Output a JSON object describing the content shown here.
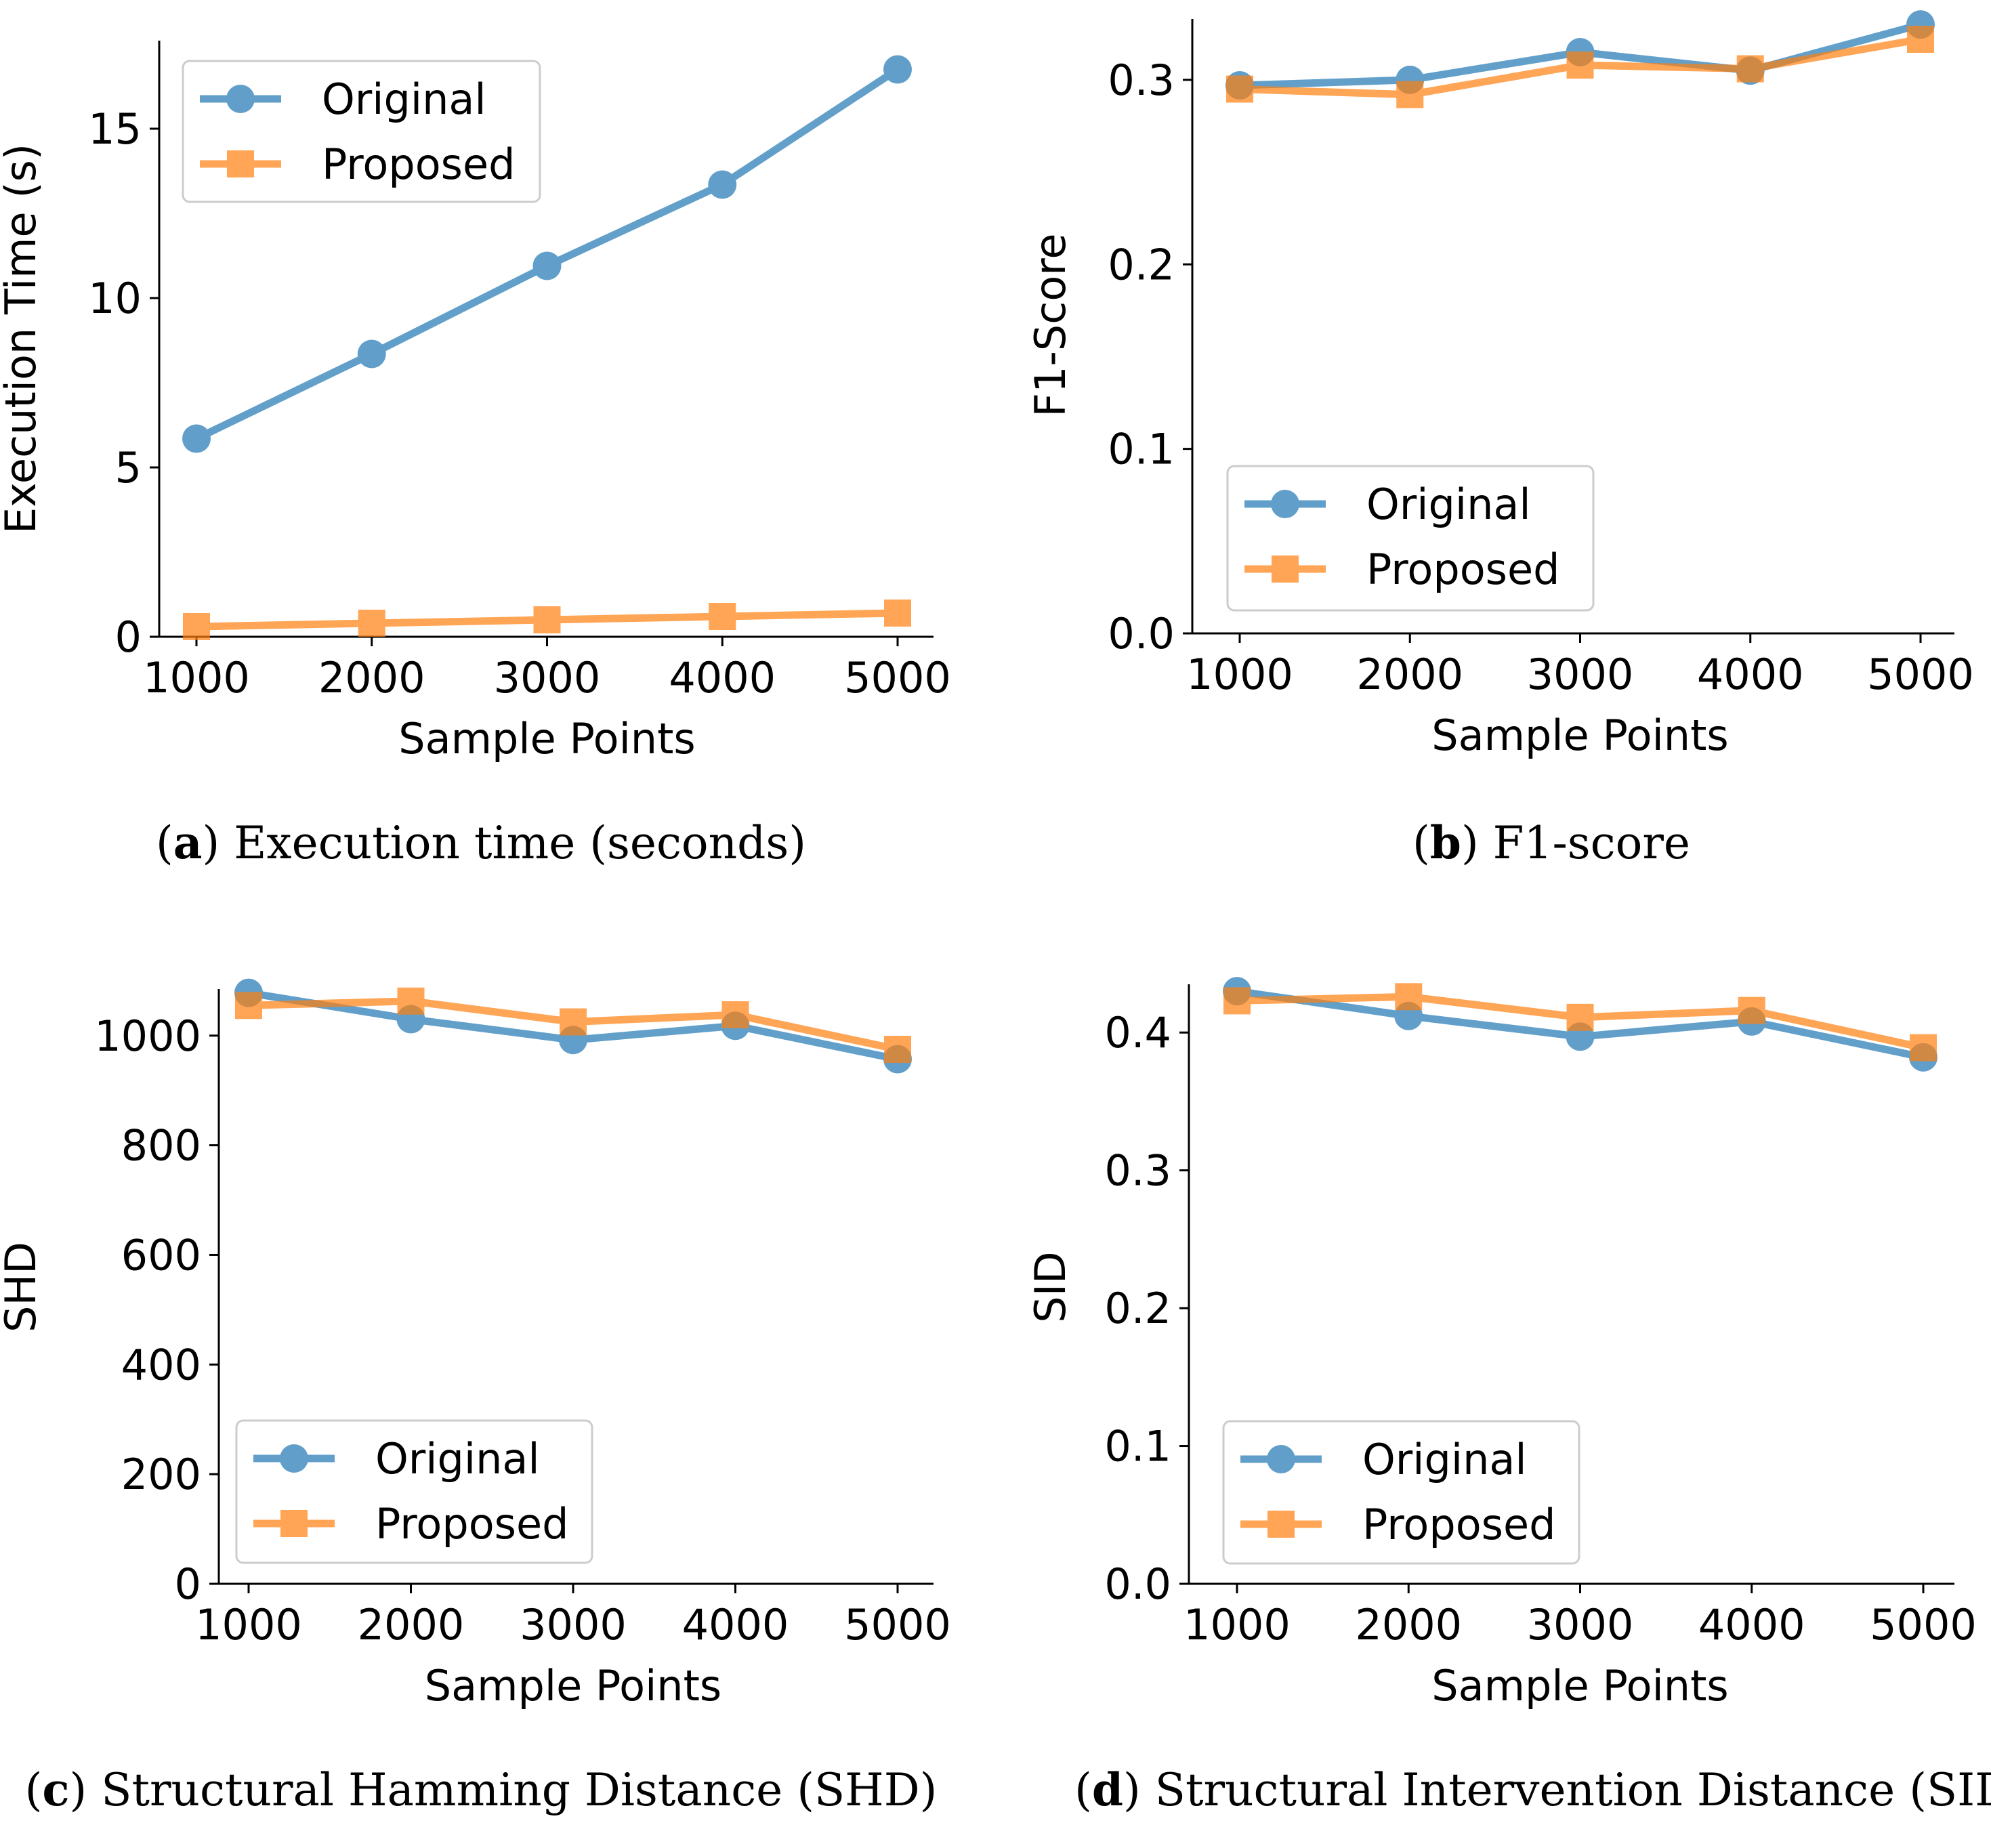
{
  "chart_data": [
    {
      "type": "line",
      "id": "a",
      "caption_letter": "a",
      "caption_text": " Execution time (seconds)",
      "xlabel": "Sample Points",
      "ylabel": "Execution Time (s)",
      "categories": [
        1000,
        2000,
        3000,
        4000,
        5000
      ],
      "x_ticks": [
        "1000",
        "2000",
        "3000",
        "4000",
        "5000"
      ],
      "ylim": [
        0,
        17.6
      ],
      "y_ticks": [
        0,
        5,
        10,
        15
      ],
      "y_tick_labels": [
        "0",
        "5",
        "10",
        "15"
      ],
      "legend_position": "upper-left",
      "series": [
        {
          "name": "Original",
          "marker": "circle",
          "color": "#1f77b4",
          "values": [
            5.85,
            8.35,
            10.95,
            13.35,
            16.75
          ]
        },
        {
          "name": "Proposed",
          "marker": "square",
          "color": "#ff7f0e",
          "values": [
            0.3,
            0.4,
            0.5,
            0.6,
            0.7
          ]
        }
      ]
    },
    {
      "type": "line",
      "id": "b",
      "caption_letter": "b",
      "caption_text": " F1-score",
      "xlabel": "Sample Points",
      "ylabel": "F1-Score",
      "categories": [
        1000,
        2000,
        3000,
        4000,
        5000
      ],
      "x_ticks": [
        "1000",
        "2000",
        "3000",
        "4000",
        "5000"
      ],
      "ylim": [
        0,
        0.333
      ],
      "y_ticks": [
        0.0,
        0.1,
        0.2,
        0.3
      ],
      "y_tick_labels": [
        "0.0",
        "0.1",
        "0.2",
        "0.3"
      ],
      "legend_position": "lower-left",
      "series": [
        {
          "name": "Original",
          "marker": "circle",
          "color": "#1f77b4",
          "values": [
            0.297,
            0.3,
            0.315,
            0.305,
            0.33
          ]
        },
        {
          "name": "Proposed",
          "marker": "square",
          "color": "#ff7f0e",
          "values": [
            0.295,
            0.292,
            0.308,
            0.306,
            0.322
          ]
        }
      ]
    },
    {
      "type": "line",
      "id": "c",
      "caption_letter": "c",
      "caption_text": " Structural Hamming Distance (SHD)",
      "xlabel": "Sample Points",
      "ylabel": "SHD",
      "categories": [
        1000,
        2000,
        3000,
        4000,
        5000
      ],
      "x_ticks": [
        "1000",
        "2000",
        "3000",
        "4000",
        "5000"
      ],
      "ylim": [
        0,
        1085
      ],
      "y_ticks": [
        0,
        200,
        400,
        600,
        800,
        1000
      ],
      "y_tick_labels": [
        "0",
        "200",
        "400",
        "600",
        "800",
        "1000"
      ],
      "legend_position": "lower-left",
      "series": [
        {
          "name": "Original",
          "marker": "circle",
          "color": "#1f77b4",
          "values": [
            1078,
            1030,
            992,
            1018,
            957
          ]
        },
        {
          "name": "Proposed",
          "marker": "square",
          "color": "#ff7f0e",
          "values": [
            1055,
            1063,
            1025,
            1038,
            975
          ]
        }
      ]
    },
    {
      "type": "line",
      "id": "d",
      "caption_letter": "d",
      "caption_text": " Structural Intervention Distance (SID)",
      "xlabel": "Sample Points",
      "ylabel": "SID",
      "categories": [
        1000,
        2000,
        3000,
        4000,
        5000
      ],
      "x_ticks": [
        "1000",
        "2000",
        "3000",
        "4000",
        "5000"
      ],
      "ylim": [
        0,
        0.435
      ],
      "y_ticks": [
        0.0,
        0.1,
        0.2,
        0.3,
        0.4
      ],
      "y_tick_labels": [
        "0.0",
        "0.1",
        "0.2",
        "0.3",
        "0.4"
      ],
      "legend_position": "lower-left",
      "series": [
        {
          "name": "Original",
          "marker": "circle",
          "color": "#1f77b4",
          "values": [
            0.43,
            0.412,
            0.397,
            0.408,
            0.382
          ]
        },
        {
          "name": "Proposed",
          "marker": "square",
          "color": "#ff7f0e",
          "values": [
            0.423,
            0.426,
            0.411,
            0.416,
            0.389
          ]
        }
      ]
    }
  ]
}
